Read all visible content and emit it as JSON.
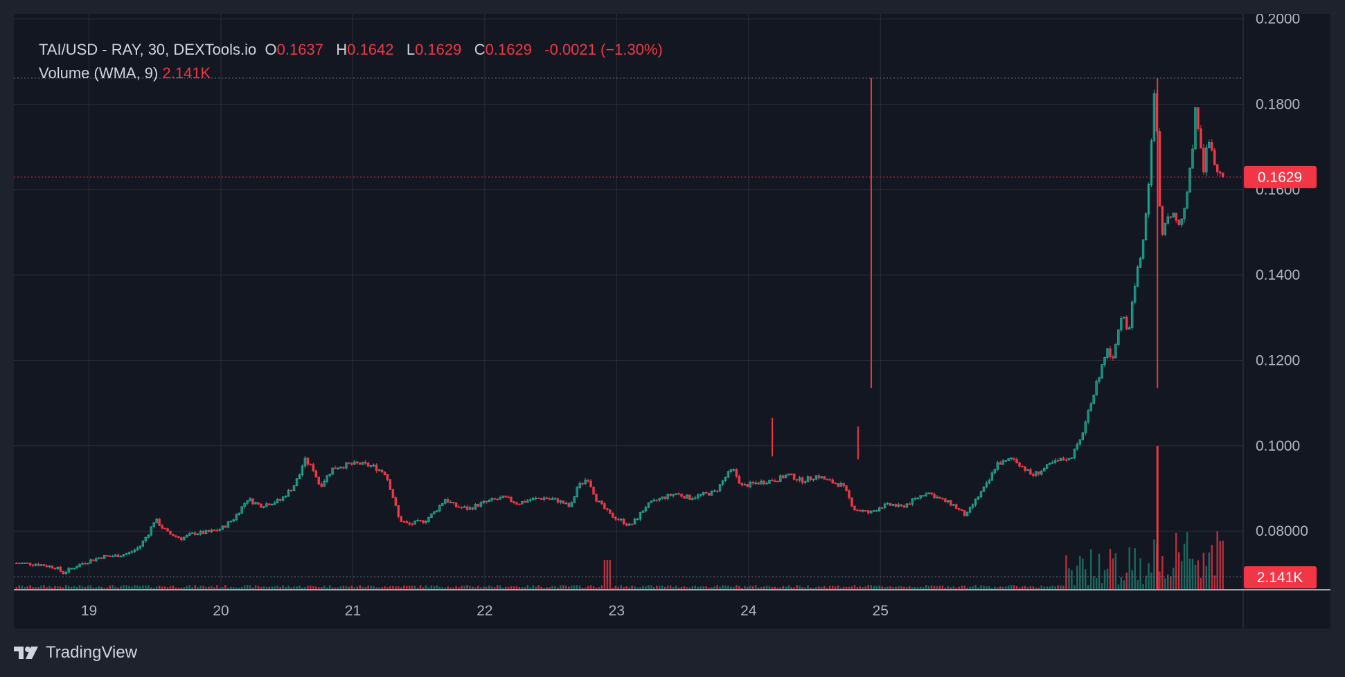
{
  "header": {
    "symbol": "TAI/USD - RAY, 30, DEXTools.io",
    "ohlc": [
      {
        "label": "O",
        "value": "0.1637"
      },
      {
        "label": "H",
        "value": "0.1642"
      },
      {
        "label": "L",
        "value": "0.1629"
      },
      {
        "label": "C",
        "value": "0.1629"
      }
    ],
    "change": "-0.0021 (−1.30%)",
    "volume_label": "Volume (WMA, 9)",
    "volume_value": "2.141K"
  },
  "footer": {
    "brand": "TradingView",
    "logo_icon": "tradingview-logo-icon"
  },
  "colors": {
    "up": "#22ab94",
    "down": "#f23645",
    "grid": "#2a2e39",
    "background": "#131722",
    "frame": "#1e222d",
    "text": "#b2b5be"
  },
  "chart_data": {
    "type": "candlestick",
    "title": "TAI/USD - RAY, 30, DEXTools.io",
    "interval": "30",
    "x_ticks": [
      "19",
      "20",
      "21",
      "22",
      "23",
      "24",
      "25"
    ],
    "y_ticks": [
      "0.08000",
      "0.1000",
      "0.1200",
      "0.1400",
      "0.1600",
      "0.1800",
      "0.2000"
    ],
    "ylim": [
      0.0695,
      0.2005
    ],
    "last_price": 0.1629,
    "last_price_label": "0.1629",
    "volume_last_label": "2.141K",
    "session_high_line": 0.1861,
    "session_low_line": 0.0693,
    "grid": true,
    "price_path": [
      [
        "18.45",
        0.0725
      ],
      [
        "18.6",
        0.0723
      ],
      [
        "18.75",
        0.0715
      ],
      [
        "18.8",
        0.0702
      ],
      [
        "18.95",
        0.0725
      ],
      [
        "19.1",
        0.074
      ],
      [
        "19.2",
        0.0742
      ],
      [
        "19.3",
        0.0748
      ],
      [
        "19.38",
        0.0762
      ],
      [
        "19.45",
        0.0795
      ],
      [
        "19.5",
        0.0828
      ],
      [
        "19.55",
        0.081
      ],
      [
        "19.6",
        0.0795
      ],
      [
        "19.7",
        0.0783
      ],
      [
        "19.8",
        0.0795
      ],
      [
        "19.9",
        0.0797
      ],
      [
        "20.0",
        0.0805
      ],
      [
        "20.1",
        0.083
      ],
      [
        "20.2",
        0.0875
      ],
      [
        "20.3",
        0.086
      ],
      [
        "20.45",
        0.0872
      ],
      [
        "20.55",
        0.0905
      ],
      [
        "20.6",
        0.0935
      ],
      [
        "20.63",
        0.0968
      ],
      [
        "20.7",
        0.0945
      ],
      [
        "20.75",
        0.0905
      ],
      [
        "20.85",
        0.0948
      ],
      [
        "20.95",
        0.0955
      ],
      [
        "21.05",
        0.0958
      ],
      [
        "21.15",
        0.0952
      ],
      [
        "21.25",
        0.0935
      ],
      [
        "21.3",
        0.0885
      ],
      [
        "21.35",
        0.0828
      ],
      [
        "21.42",
        0.0815
      ],
      [
        "21.55",
        0.0825
      ],
      [
        "21.62",
        0.0845
      ],
      [
        "21.7",
        0.0875
      ],
      [
        "21.78",
        0.0858
      ],
      [
        "21.88",
        0.0852
      ],
      [
        "21.95",
        0.0862
      ],
      [
        "22.05",
        0.0872
      ],
      [
        "22.15",
        0.0878
      ],
      [
        "22.25",
        0.0865
      ],
      [
        "22.35",
        0.0874
      ],
      [
        "22.45",
        0.0878
      ],
      [
        "22.55",
        0.0872
      ],
      [
        "22.6",
        0.0865
      ],
      [
        "22.65",
        0.0855
      ],
      [
        "22.7",
        0.0902
      ],
      [
        "22.78",
        0.0925
      ],
      [
        "22.85",
        0.0872
      ],
      [
        "22.9",
        0.0855
      ],
      [
        "22.95",
        0.0838
      ],
      [
        "23.05",
        0.0822
      ],
      [
        "23.1",
        0.0812
      ],
      [
        "23.15",
        0.0828
      ],
      [
        "23.22",
        0.0858
      ],
      [
        "23.32",
        0.0875
      ],
      [
        "23.45",
        0.0888
      ],
      [
        "23.55",
        0.0878
      ],
      [
        "23.65",
        0.0885
      ],
      [
        "23.75",
        0.0892
      ],
      [
        "23.82",
        0.0925
      ],
      [
        "23.88",
        0.0945
      ],
      [
        "23.95",
        0.0905
      ],
      [
        "24.05",
        0.0912
      ],
      [
        "24.15",
        0.0918
      ],
      [
        "24.22",
        0.0922
      ],
      [
        "24.3",
        0.0932
      ],
      [
        "24.4",
        0.0918
      ],
      [
        "24.45",
        0.0922
      ],
      [
        "24.52",
        0.093
      ],
      [
        "24.6",
        0.0918
      ],
      [
        "24.7",
        0.0908
      ],
      [
        "24.73",
        0.0898
      ],
      [
        "24.8",
        0.0852
      ],
      [
        "24.85",
        0.0848
      ],
      [
        "24.92",
        0.0842
      ],
      [
        "25.0",
        0.0858
      ],
      [
        "25.1",
        0.0862
      ],
      [
        "25.15",
        0.0855
      ],
      [
        "25.25",
        0.0872
      ],
      [
        "25.35",
        0.0892
      ],
      [
        "25.45",
        0.0875
      ],
      [
        "25.55",
        0.0862
      ],
      [
        "25.6",
        0.0848
      ],
      [
        "25.65",
        0.0835
      ],
      [
        "25.7",
        0.0862
      ],
      [
        "25.75",
        0.0885
      ],
      [
        "25.82",
        0.0915
      ],
      [
        "25.88",
        0.0958
      ],
      [
        "25.95",
        0.0962
      ],
      [
        "26.0",
        0.0972
      ],
      [
        "26.08",
        0.095
      ],
      [
        "26.15",
        0.093
      ],
      [
        "26.2",
        0.0938
      ],
      [
        "26.3",
        0.0958
      ],
      [
        "26.38",
        0.0968
      ],
      [
        "26.45",
        0.0975
      ],
      [
        "26.52",
        0.1015
      ],
      [
        "26.55",
        0.1055
      ],
      [
        "26.6",
        0.1105
      ],
      [
        "26.64",
        0.1148
      ],
      [
        "26.68",
        0.1185
      ],
      [
        "26.72",
        0.1225
      ],
      [
        "26.76",
        0.1195
      ],
      [
        "26.8",
        0.1275
      ],
      [
        "26.84",
        0.1305
      ],
      [
        "26.88",
        0.1255
      ],
      [
        "26.91",
        0.1345
      ],
      [
        "26.94",
        0.1395
      ],
      [
        "26.97",
        0.1445
      ],
      [
        "27.0",
        0.1505
      ],
      [
        "27.02",
        0.1575
      ],
      [
        "27.05",
        0.1675
      ],
      [
        "27.07",
        0.1835
      ],
      [
        "27.09",
        0.1785
      ],
      [
        "27.11",
        0.1595
      ],
      [
        "27.13",
        0.1475
      ],
      [
        "27.16",
        0.1525
      ],
      [
        "27.19",
        0.1535
      ],
      [
        "27.22",
        0.1555
      ],
      [
        "27.25",
        0.1515
      ],
      [
        "27.29",
        0.1535
      ],
      [
        "27.32",
        0.1585
      ],
      [
        "27.36",
        0.1675
      ],
      [
        "27.39",
        0.1805
      ],
      [
        "27.42",
        0.1715
      ],
      [
        "27.45",
        0.1645
      ],
      [
        "27.48",
        0.1725
      ],
      [
        "27.51",
        0.1705
      ],
      [
        "27.54",
        0.1645
      ],
      [
        "27.57",
        0.1632
      ],
      [
        "27.6",
        0.1629
      ]
    ],
    "spikes": [
      {
        "x": "24.83",
        "high": 0.1045,
        "low": 0.0968
      },
      {
        "x": "24.18",
        "high": 0.1065,
        "low": 0.0975
      },
      {
        "x": "24.93",
        "high": 0.1861,
        "low": 0.1135
      },
      {
        "x": "27.1",
        "high": 0.1861,
        "low": 0.1135
      }
    ]
  }
}
